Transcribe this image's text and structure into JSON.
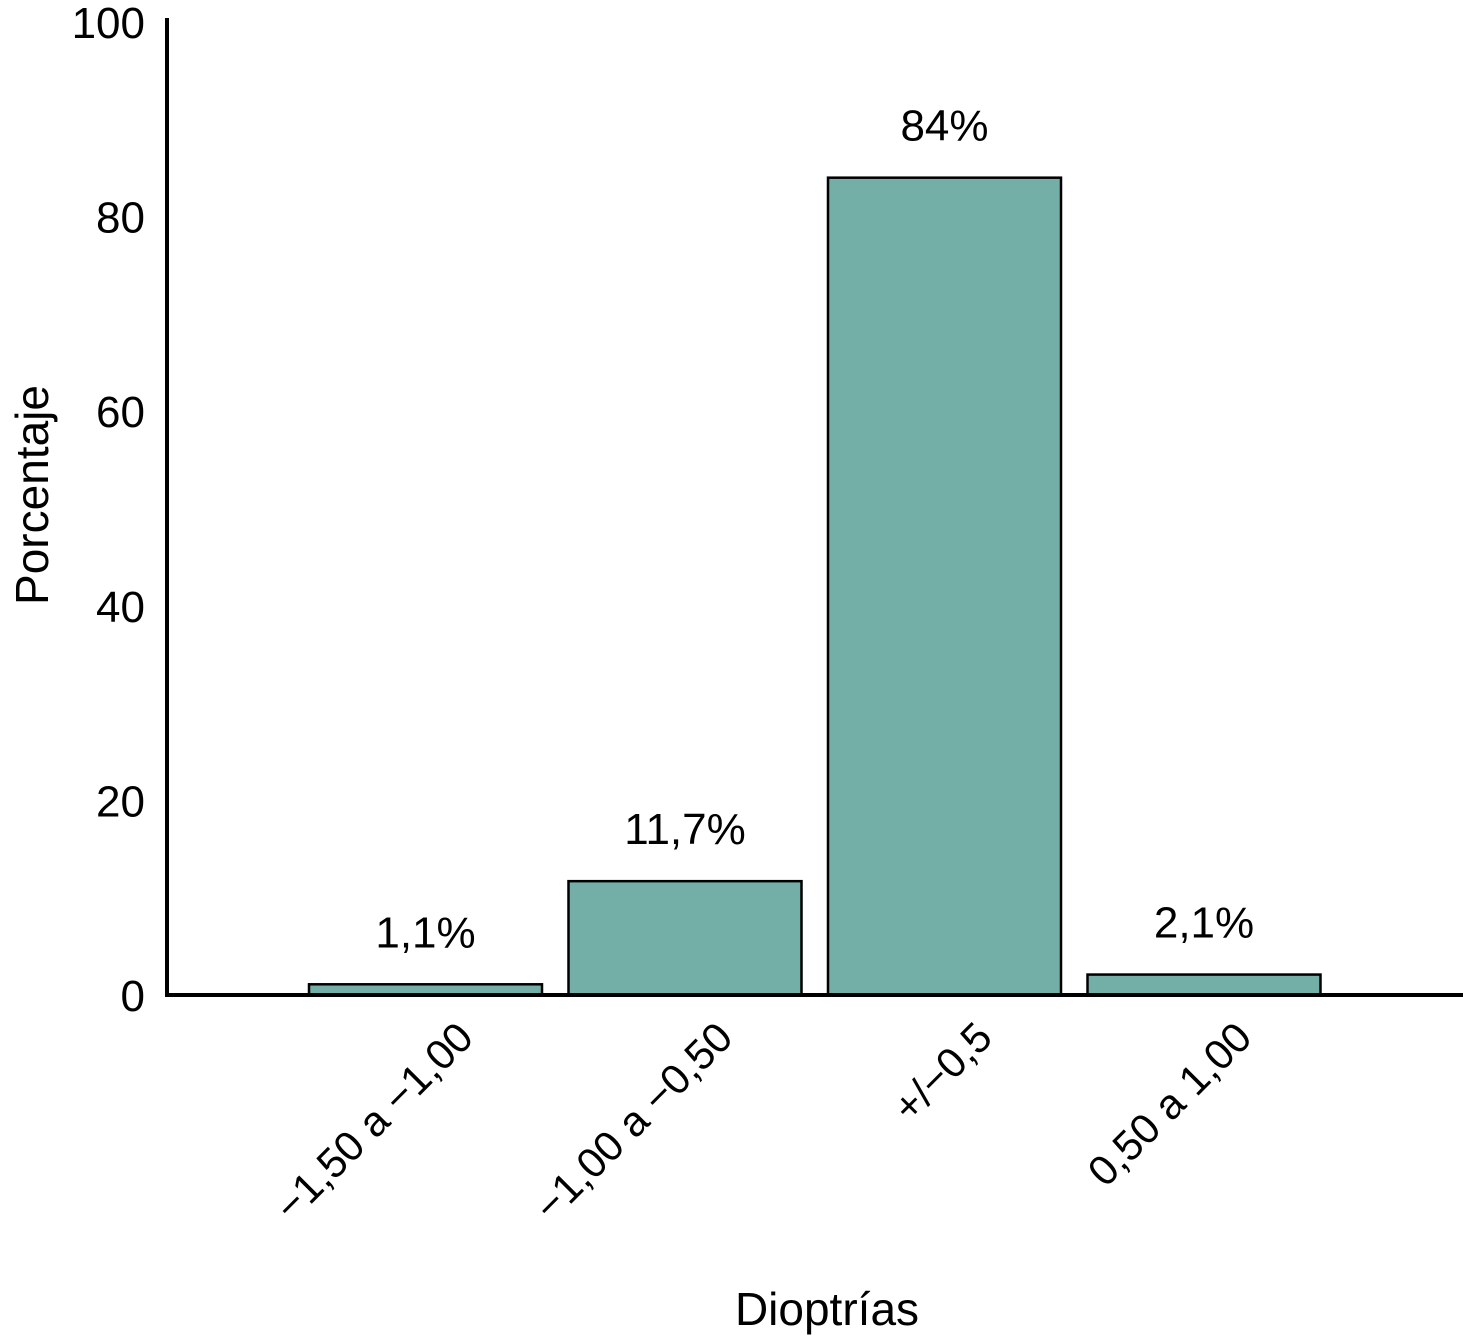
{
  "chart_data": {
    "type": "bar",
    "categories": [
      "−1,50 a −1,00",
      "−1,00 a −0,50",
      "+/−0,5",
      "0,50 a 1,00"
    ],
    "values": [
      1.1,
      11.7,
      84,
      2.1
    ],
    "data_labels": [
      "1,1%",
      "11,7%",
      "84%",
      "2,1%"
    ],
    "xlabel": "Dioptrías",
    "ylabel": "Porcentaje",
    "ylim": [
      0,
      100
    ],
    "yticks": [
      0,
      20,
      40,
      60,
      80,
      100
    ],
    "grid": false,
    "legend": "none",
    "bar_color": "#74afa7",
    "axis_color": "#000000"
  }
}
